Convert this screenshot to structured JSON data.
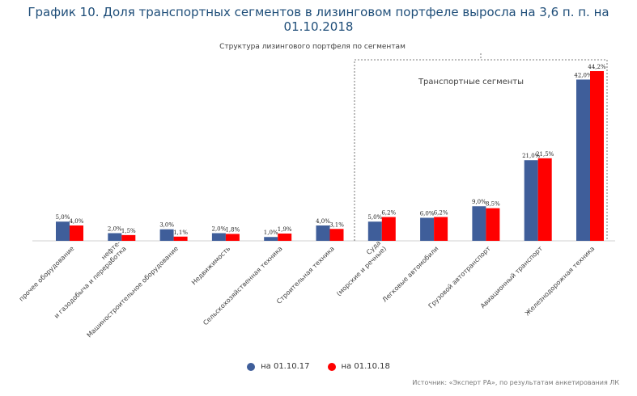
{
  "page_title": "График 10. Доля транспортных сегментов в лизинговом портфеле выросла на 3,6 п. п. на 01.10.2018",
  "source": "Источник: «Эксперт РА», по результатам анкетирования ЛК",
  "chart_data": {
    "type": "bar",
    "title": "Структура лизингового портфеля по сегментам",
    "region_label": "Транспортные сегменты",
    "categories": [
      "прочее оборудование",
      "нефте- и газодобыча и переработка",
      "Машиностроительное оборудование",
      "Недвижимость",
      "Сельскохозяйственная техника",
      "Строительная техника",
      "Суда (морские и речные)",
      "Легковые автомобили",
      "Грузовой автотранспорт",
      "Авиационный транспорт",
      "Железнодорожная техника"
    ],
    "series": [
      {
        "name": "на 01.10.17",
        "color": "#3f5e9a",
        "values": [
          5.0,
          2.0,
          3.0,
          2.0,
          1.0,
          4.0,
          5.0,
          6.0,
          9.0,
          21.0,
          42.0
        ],
        "labels": [
          "5,0%",
          "2,0%",
          "3,0%",
          "2,0%",
          "1,0%",
          "4,0%",
          "5,0%",
          "6,0%",
          "9,0%",
          "21,0%",
          "42,0%"
        ]
      },
      {
        "name": "на 01.10.18",
        "color": "#ff0000",
        "values": [
          4.0,
          1.5,
          1.1,
          1.8,
          1.9,
          3.1,
          6.2,
          6.2,
          8.5,
          21.5,
          44.2
        ],
        "labels": [
          "4,0%",
          "1,5%",
          "1,1%",
          "1,8%",
          "1,9%",
          "3,1%",
          "6,2%",
          "6,2%",
          "8,5%",
          "21,5%",
          "44,2%"
        ]
      }
    ],
    "ylim": [
      0,
      44.2
    ]
  }
}
